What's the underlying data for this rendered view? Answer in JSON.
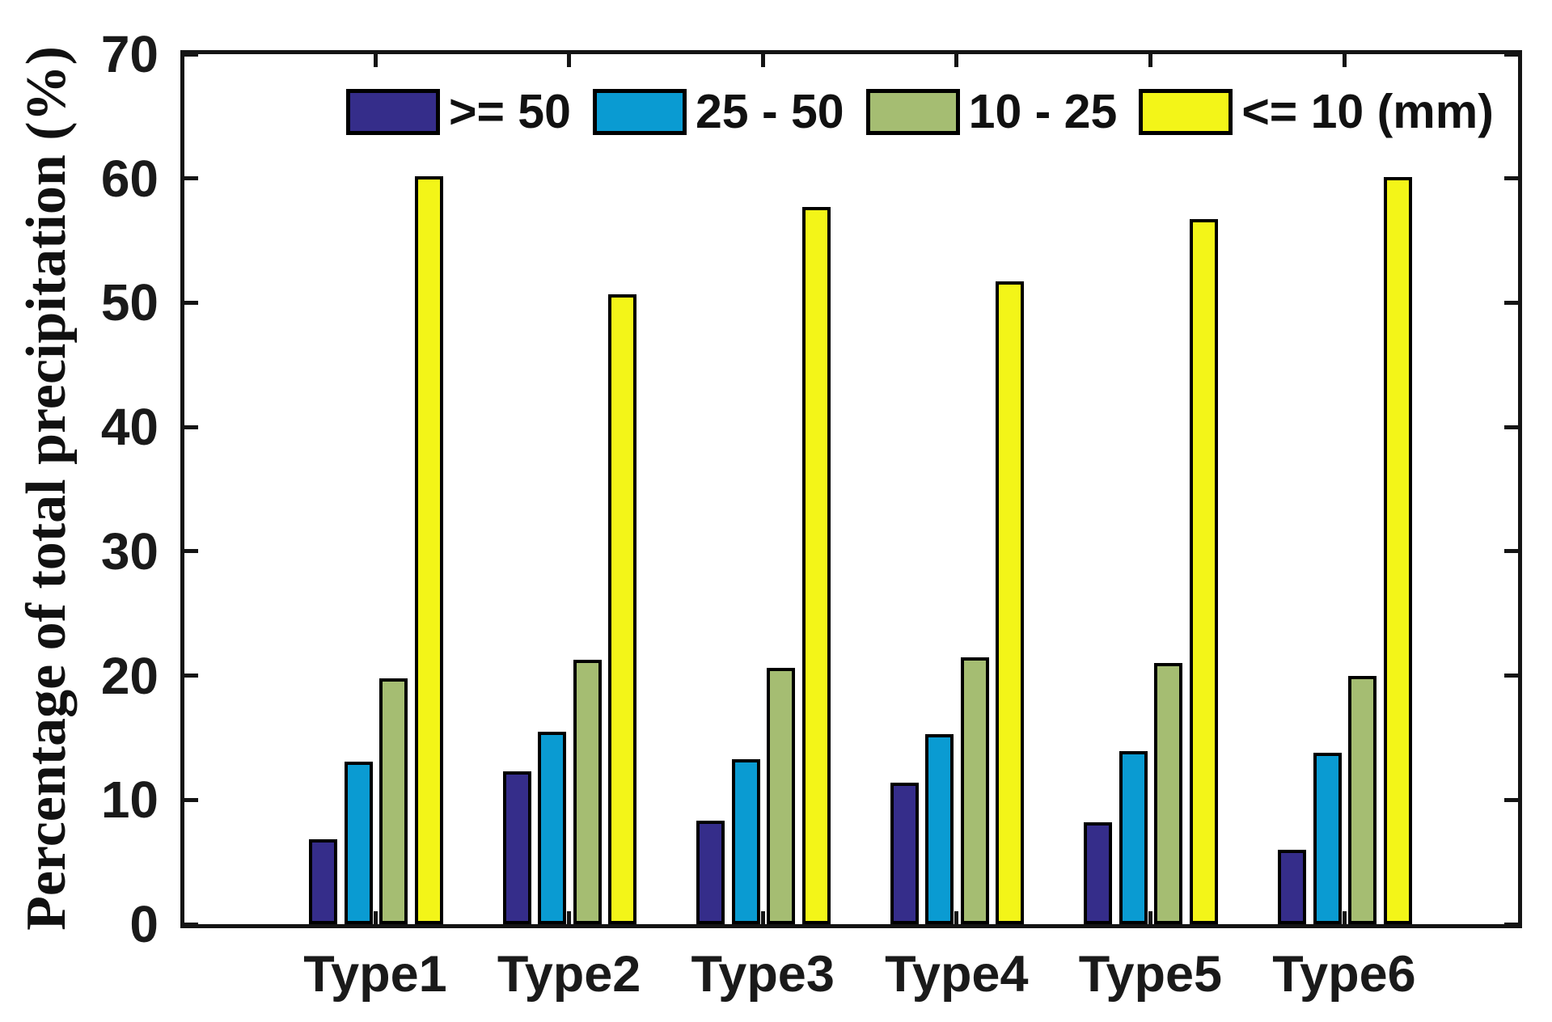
{
  "figure": {
    "background": "#ffffff",
    "axis_color": "#141414"
  },
  "chart_data": {
    "type": "bar",
    "title": "",
    "xlabel": "",
    "ylabel": "Percentage of total precipitation (%)",
    "ylim": [
      0,
      70
    ],
    "y_ticks": [
      0,
      10,
      20,
      30,
      40,
      50,
      60,
      70
    ],
    "grid": false,
    "legend_position": "top-inside",
    "bar_border_color": "#000000",
    "categories": [
      "Type1",
      "Type2",
      "Type3",
      "Type4",
      "Type5",
      "Type6"
    ],
    "series": [
      {
        "name": ">= 50",
        "color": "#352d8a",
        "values": [
          6.8,
          12.3,
          8.3,
          11.4,
          8.2,
          6.0
        ]
      },
      {
        "name": "25 - 50",
        "color": "#0a9bd2",
        "values": [
          13.1,
          15.5,
          13.3,
          15.3,
          13.9,
          13.8
        ]
      },
      {
        "name": "10 - 25",
        "color": "#a5bd72",
        "values": [
          19.8,
          21.3,
          20.6,
          21.5,
          21.0,
          20.0
        ]
      },
      {
        "name": "<= 10 (mm)",
        "color": "#f3f518",
        "values": [
          60.2,
          50.7,
          57.7,
          51.7,
          56.7,
          60.1
        ]
      }
    ]
  }
}
